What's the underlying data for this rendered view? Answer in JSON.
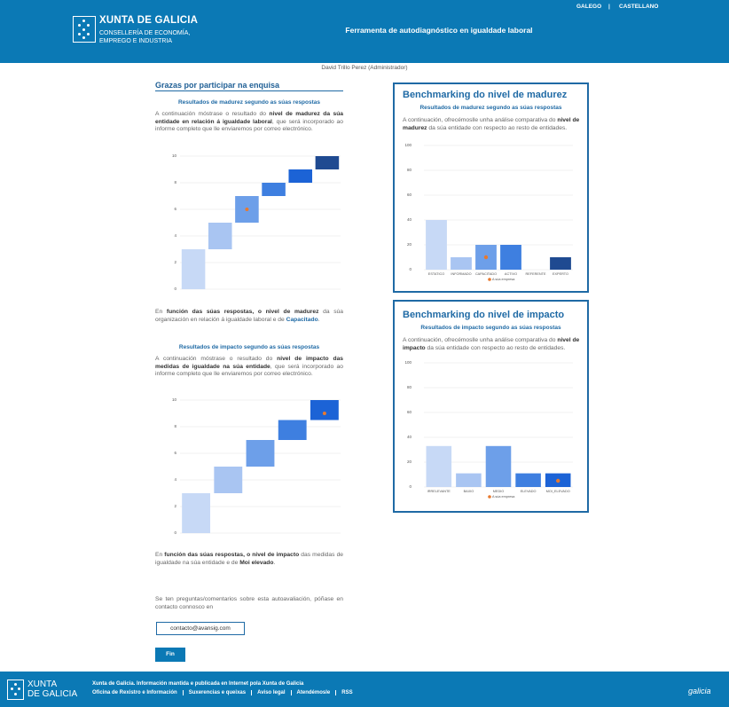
{
  "header": {
    "logo_title": "XUNTA DE GALICIA",
    "logo_subtitle": [
      "CONSELLERÍA DE ECONOMÍA,",
      "EMPREGO E INDUSTRIA"
    ],
    "title": "Ferramenta de autodiagnóstico en igualdade laboral",
    "languages": [
      "GALEGO",
      "CASTELLANO"
    ],
    "separator": "|"
  },
  "user": "David Trillo Perez (Administrador)",
  "left": {
    "heading": "Grazas por participar na enquisa",
    "maturity_intro": [
      {
        "text": "A continuación móstrase o resultado do "
      },
      {
        "text": "nivel de madurez da súa entidade en relación á igualdade laboral",
        "style": "bold"
      },
      {
        "text": ", que será incorporado ao informe completo que lle enviaremos por correo electrónico."
      }
    ],
    "maturity_result": [
      {
        "text": "En "
      },
      {
        "text": "función das súas respostas, o nivel de madurez",
        "style": "bold"
      },
      {
        "text": " da súa organización en relación á igualdade laboral e de "
      },
      {
        "text": "Capacitado",
        "style": "link"
      },
      {
        "text": "."
      }
    ],
    "impact_intro": [
      {
        "text": "A continuación móstrase o resultado do "
      },
      {
        "text": "nivel de impacto das medidas de igualdade na súa entidade",
        "style": "bold"
      },
      {
        "text": ", que será incorporado ao informe completo que lle enviaremos por correo electrónico."
      }
    ],
    "impact_result": [
      {
        "text": "En "
      },
      {
        "text": "función das súas respostas, o nivel de impacto",
        "style": "bold"
      },
      {
        "text": " das medidas de igualdade na súa entidade e de "
      },
      {
        "text": "Moi elevado",
        "style": "bold"
      },
      {
        "text": "."
      }
    ],
    "contact_text": "Se ten preguntas/comentarios sobre esta autoavaliación, póñase en contacto connosco en",
    "contact_button": "contacto@avansig.com",
    "finish_button": "Fin"
  },
  "right": {
    "maturity_text": [
      {
        "text": "A continuación, ofrecémoslle unha análise comparativa do "
      },
      {
        "text": "nivel de madurez",
        "style": "bold"
      },
      {
        "text": " da súa entidade con respecto ao resto de entidades."
      }
    ],
    "impact_text": [
      {
        "text": "A continuación, ofrecémoslle unha análise comparativa do "
      },
      {
        "text": "nivel de impacto",
        "style": "bold"
      },
      {
        "text": " da súa entidade con respecto ao resto de entidades."
      }
    ]
  },
  "chart_data": [
    {
      "type": "waterfall",
      "title": "Resultados de madurez segundo as súas respostas",
      "values": [
        3,
        2,
        2,
        1,
        1,
        1
      ],
      "colors": [
        "#c7d9f6",
        "#a9c5f2",
        "#6d9fe9",
        "#3e7fe0",
        "#1c63d6",
        "#1f4a91"
      ],
      "markers": [
        null,
        null,
        6,
        null,
        null,
        null
      ],
      "marker_color": "#e8792e",
      "ylim": [
        0,
        10
      ],
      "yticks": [
        0,
        2,
        4,
        6,
        8,
        10
      ],
      "grid": true
    },
    {
      "type": "waterfall",
      "title": "Resultados de impacto segundo as súas respostas",
      "values": [
        3,
        2,
        2,
        1.5,
        1.5
      ],
      "colors": [
        "#c7d9f6",
        "#a9c5f2",
        "#6d9fe9",
        "#3e7fe0",
        "#1c63d6"
      ],
      "markers": [
        null,
        null,
        null,
        null,
        9
      ],
      "marker_color": "#e8792e",
      "ylim": [
        0,
        10
      ],
      "yticks": [
        0,
        2,
        4,
        6,
        8,
        10
      ],
      "grid": true
    },
    {
      "type": "bar",
      "title": "Benchmarking do nivel de madurez",
      "subtitle": "Resultados de madurez segundo as súas respostas",
      "categories": [
        "ESTATICO",
        "INFORMADO",
        "CAPACITADO",
        "ACTIVO",
        "REFERENTE",
        "EXPERTO"
      ],
      "values": [
        40,
        10,
        20,
        20,
        0,
        10
      ],
      "colors": [
        "#c7d9f6",
        "#a9c5f2",
        "#6d9fe9",
        "#3e7fe0",
        "#1c63d6",
        "#1f4a91"
      ],
      "marker": {
        "name": "A súa empresa",
        "color": "#e8792e",
        "values": [
          null,
          null,
          10,
          null,
          null,
          null
        ]
      },
      "ylim": [
        0,
        100
      ],
      "yticks": [
        0,
        20,
        40,
        60,
        80,
        100
      ],
      "grid": true
    },
    {
      "type": "bar",
      "title": "Benchmarking do nivel de impacto",
      "subtitle": "Resultados de impacto segundo as súas respostas",
      "categories": [
        "IRRELEVANTE",
        "BAIXO",
        "MEDIO",
        "ELEVADO",
        "MOI_ELEVADO"
      ],
      "values": [
        33,
        11,
        33,
        11,
        11
      ],
      "colors": [
        "#c7d9f6",
        "#a9c5f2",
        "#6d9fe9",
        "#3e7fe0",
        "#1c63d6"
      ],
      "marker": {
        "name": "A súa empresa",
        "color": "#e8792e",
        "values": [
          null,
          null,
          null,
          null,
          5
        ]
      },
      "ylim": [
        0,
        100
      ],
      "yticks": [
        0,
        20,
        40,
        60,
        80,
        100
      ],
      "grid": true
    }
  ],
  "footer": {
    "logo": [
      "XUNTA",
      "DE GALICIA"
    ],
    "notice": "Xunta de Galicia. Información mantida e publicada en Internet pola Xunta de Galicia",
    "links": [
      "Oficina de Rexistro e Información",
      "Suxerencias e queixas",
      "Aviso legal",
      "Atendémosle",
      "RSS"
    ],
    "brand": "galicia"
  }
}
